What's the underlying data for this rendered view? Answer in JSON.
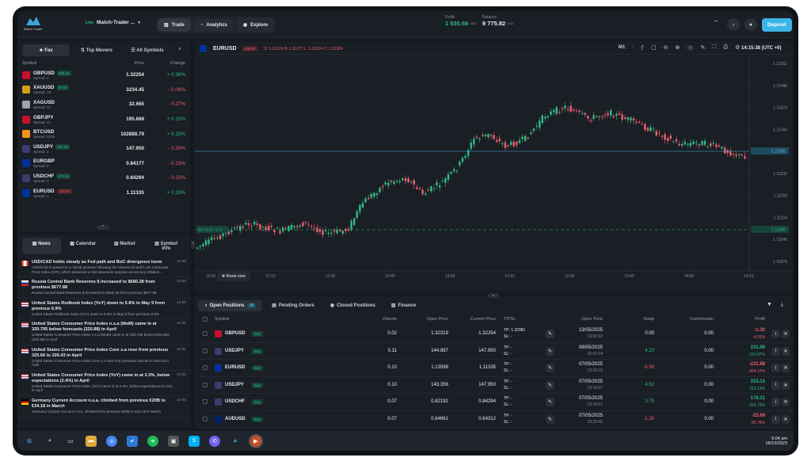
{
  "app": {
    "logo_text": "Match-Trader",
    "live": "Live",
    "account": "Match-Trader ...",
    "tabs": [
      "Trade",
      "Analytics",
      "Explore"
    ],
    "profit_label": "Profit",
    "profit_value": "1 530.68",
    "profit_cur": "USD",
    "balance_label": "Balance",
    "balance_value": "9 775.82",
    "balance_cur": "USD",
    "deposit": "Deposit"
  },
  "watch": {
    "tabs": [
      "Fav",
      "Top Movers",
      "All Symbols"
    ],
    "col_symbol": "Symbol",
    "col_price": "Price",
    "col_change": "Change",
    "rows": [
      {
        "sym": "GBPUSD",
        "spread": "Spread: 4",
        "badge": "866.62",
        "bc": "g",
        "price": "1.32254",
        "chg": "+ 0.36%",
        "cc": "g",
        "flag": "#c8102e"
      },
      {
        "sym": "XAUUSD",
        "spread": "Spread: 19",
        "badge": "97.03",
        "bc": "g",
        "price": "3234.45",
        "chg": "- 0.06%",
        "cc": "r",
        "flag": "#d4a017"
      },
      {
        "sym": "XAGUSD",
        "spread": "Spread: 12",
        "badge": "",
        "bc": "",
        "price": "32.665",
        "chg": "- 0.27%",
        "cc": "r",
        "flag": "#9ea4ad"
      },
      {
        "sym": "GBPJPY",
        "spread": "Spread: 12",
        "badge": "",
        "bc": "",
        "price": "195.668",
        "chg": "+ 0.15%",
        "cc": "g",
        "flag": "#c8102e"
      },
      {
        "sym": "BTCUSD",
        "spread": "Spread: 1315",
        "badge": "",
        "bc": "",
        "price": "102888.79",
        "chg": "+ 0.15%",
        "cc": "g",
        "flag": "#f7931a"
      },
      {
        "sym": "USDJPY",
        "spread": "Spread: 2",
        "badge": "547.08",
        "bc": "g",
        "price": "147.950",
        "chg": "- 0.20%",
        "cc": "r",
        "flag": "#3c3b6e"
      },
      {
        "sym": "EURGBP",
        "spread": "Spread: 8",
        "badge": "",
        "bc": "",
        "price": "0.84177",
        "chg": "- 0.13%",
        "cc": "r",
        "flag": "#003399"
      },
      {
        "sym": "USDCHF",
        "spread": "Spread: 3",
        "badge": "178.31",
        "bc": "g",
        "price": "0.84294",
        "chg": "- 0.22%",
        "cc": "r",
        "flag": "#3c3b6e"
      },
      {
        "sym": "EURUSD",
        "spread": "Spread: 1",
        "badge": "-232.67",
        "bc": "r",
        "price": "1.11335",
        "chg": "+ 0.33%",
        "cc": "g",
        "flag": "#003399"
      }
    ]
  },
  "news": {
    "tabs": [
      "News",
      "Calendar",
      "Market",
      "Symbol info"
    ],
    "items": [
      {
        "title": "USD/CAD holds steady as Fed path and BoC divergence loom",
        "desc": "USD/CAD is poised at a critical juncture following the release of April's US Consumer Price Index (CPI), which delivered a mild downside surprise across key inflation...",
        "time": "13:49",
        "flag": "ca"
      },
      {
        "title": "Russia Central Bank Reserves $ increased to $680.28 from previous $677.88",
        "desc": "Russia Central Bank Reserves $ increased to $680.28 from previous $677.88",
        "time": "13:00",
        "flag": "ru"
      },
      {
        "title": "United States Redbook Index (YoY) down to 5.8% in May 9 from previous 6.9%",
        "desc": "United States Redbook Index (YoY) down to 5.8% in May 9 from previous 6.9%",
        "time": "12:56",
        "flag": "us"
      },
      {
        "title": "United States Consumer Price Index n.s.a (MoM) came in at 320.795 below forecasts (320.88) in April",
        "desc": "United States Consumer Price Index n.s.a (MoM) came in at 320.795 below forecasts (320.88) in April",
        "time": "12:31",
        "flag": "us"
      },
      {
        "title": "United States Consumer Price Index Core s.a rose from previous 325.66 to 326.43 in April",
        "desc": "United States Consumer Price Index Core s.a rose from previous 325.66 to 326.43 in April",
        "time": "12:31",
        "flag": "us"
      },
      {
        "title": "United States Consumer Price Index (YoY) came in at 2.3%, below expectations (2.4%) in April",
        "desc": "United States Consumer Price Index (YoY) came in at 2.3%, below expectations (2.4%) in April",
        "time": "12:31",
        "flag": "us"
      },
      {
        "title": "Germany Current Account n.s.a. climbed from previous €20B to €34.18 in March",
        "desc": "Germany Current Account n.s.a. climbed from previous €20B to €34.18 in March",
        "time": "12:00",
        "flag": "de"
      }
    ]
  },
  "chart": {
    "symbol": "EURUSD",
    "sym_badge": "-232.67",
    "ohlc": "O: 1.11374 H: 1.11377 L: 1.11324 C: 1.11324",
    "tf": "M1",
    "time": "14:15:38 (UTC +0)",
    "price_tag": "1.11335",
    "buy_tag": "BUY 0.01 -0.76",
    "buy_price": "1.11060",
    "reset": "Reset view",
    "yticks": [
      "1.11552",
      "1.11488",
      "1.11424",
      "1.11360",
      "1.11296",
      "1.11232",
      "1.11168",
      "1.11104",
      "1.11040",
      "1.10976"
    ],
    "xticks": [
      "12:00",
      "12:15",
      "12:30",
      "12:45",
      "13:00",
      "13:15",
      "13:30",
      "13:45",
      "14:00",
      "14:15"
    ]
  },
  "positions": {
    "tabs": [
      "Open Positions",
      "Pending Orders",
      "Closed Positions",
      "Finance"
    ],
    "count": "10",
    "headers": {
      "symbol": "Symbol",
      "volume": "Volume",
      "open": "Open Price",
      "current": "Current Price",
      "tpsl": "TP/SL",
      "otime": "Open Time",
      "swap": "Swap",
      "commission": "Commission",
      "profit": "Profit"
    },
    "rows": [
      {
        "sym": "GBPUSD",
        "side": "Buy",
        "vol": "0.02",
        "open": "1.32319",
        "cur": "1.32254",
        "tp": "TP: 1.32381",
        "sl": "SL: -",
        "date": "13/05/2025",
        "time": "13:50:32",
        "swap": "0.00",
        "sc": "w",
        "comm": "0.00",
        "p1": "-1.30",
        "p2": "-4.91%",
        "pc": "r",
        "flag": "#c8102e"
      },
      {
        "sym": "USDJPY",
        "side": "Buy",
        "vol": "0.11",
        "open": "144.887",
        "cur": "147.950",
        "tp": "TP: -",
        "sl": "SL: -",
        "date": "08/05/2025",
        "time": "10:07:24",
        "swap": "4.23",
        "sc": "g",
        "comm": "0.00",
        "p1": "231.96",
        "p2": "210.87%",
        "pc": "g",
        "flag": "#3c3b6e"
      },
      {
        "sym": "EURUSD",
        "side": "Buy",
        "vol": "0.10",
        "open": "1.13598",
        "cur": "1.11335",
        "tp": "TP: -",
        "sl": "SL: -",
        "date": "07/05/2025",
        "time": "13:16:15",
        "swap": "-5.58",
        "sc": "r",
        "comm": "0.00",
        "p1": "-231.88",
        "p2": "-204.12%",
        "pc": "r",
        "flag": "#003399"
      },
      {
        "sym": "USDJPY",
        "side": "Buy",
        "vol": "0.10",
        "open": "143.356",
        "cur": "147.950",
        "tp": "TP: -",
        "sl": "SL: -",
        "date": "07/05/2025",
        "time": "13:16:07",
        "swap": "4.62",
        "sc": "g",
        "comm": "0.00",
        "p1": "315.13",
        "p2": "315.13%",
        "pc": "g",
        "flag": "#3c3b6e"
      },
      {
        "sym": "USDCHF",
        "side": "Buy",
        "vol": "0.07",
        "open": "0.82192",
        "cur": "0.84294",
        "tp": "TP: -",
        "sl": "SL: -",
        "date": "07/05/2025",
        "time": "13:15:51",
        "swap": "3.75",
        "sc": "g",
        "comm": "0.00",
        "p1": "178.31",
        "p2": "254.73%",
        "pc": "g",
        "flag": "#3c3b6e"
      },
      {
        "sym": "AUDUSD",
        "side": "Buy",
        "vol": "0.07",
        "open": "0.64661",
        "cur": "0.64312",
        "tp": "TP: -",
        "sl": "SL: -",
        "date": "07/05/2025",
        "time": "13:15:46",
        "swap": "-1.26",
        "sc": "r",
        "comm": "0.00",
        "p1": "-25.69",
        "p2": "-56.76%",
        "pc": "r",
        "flag": "#012169"
      }
    ]
  },
  "taskbar": {
    "time": "9:04 am",
    "date": "18/10/2023"
  }
}
